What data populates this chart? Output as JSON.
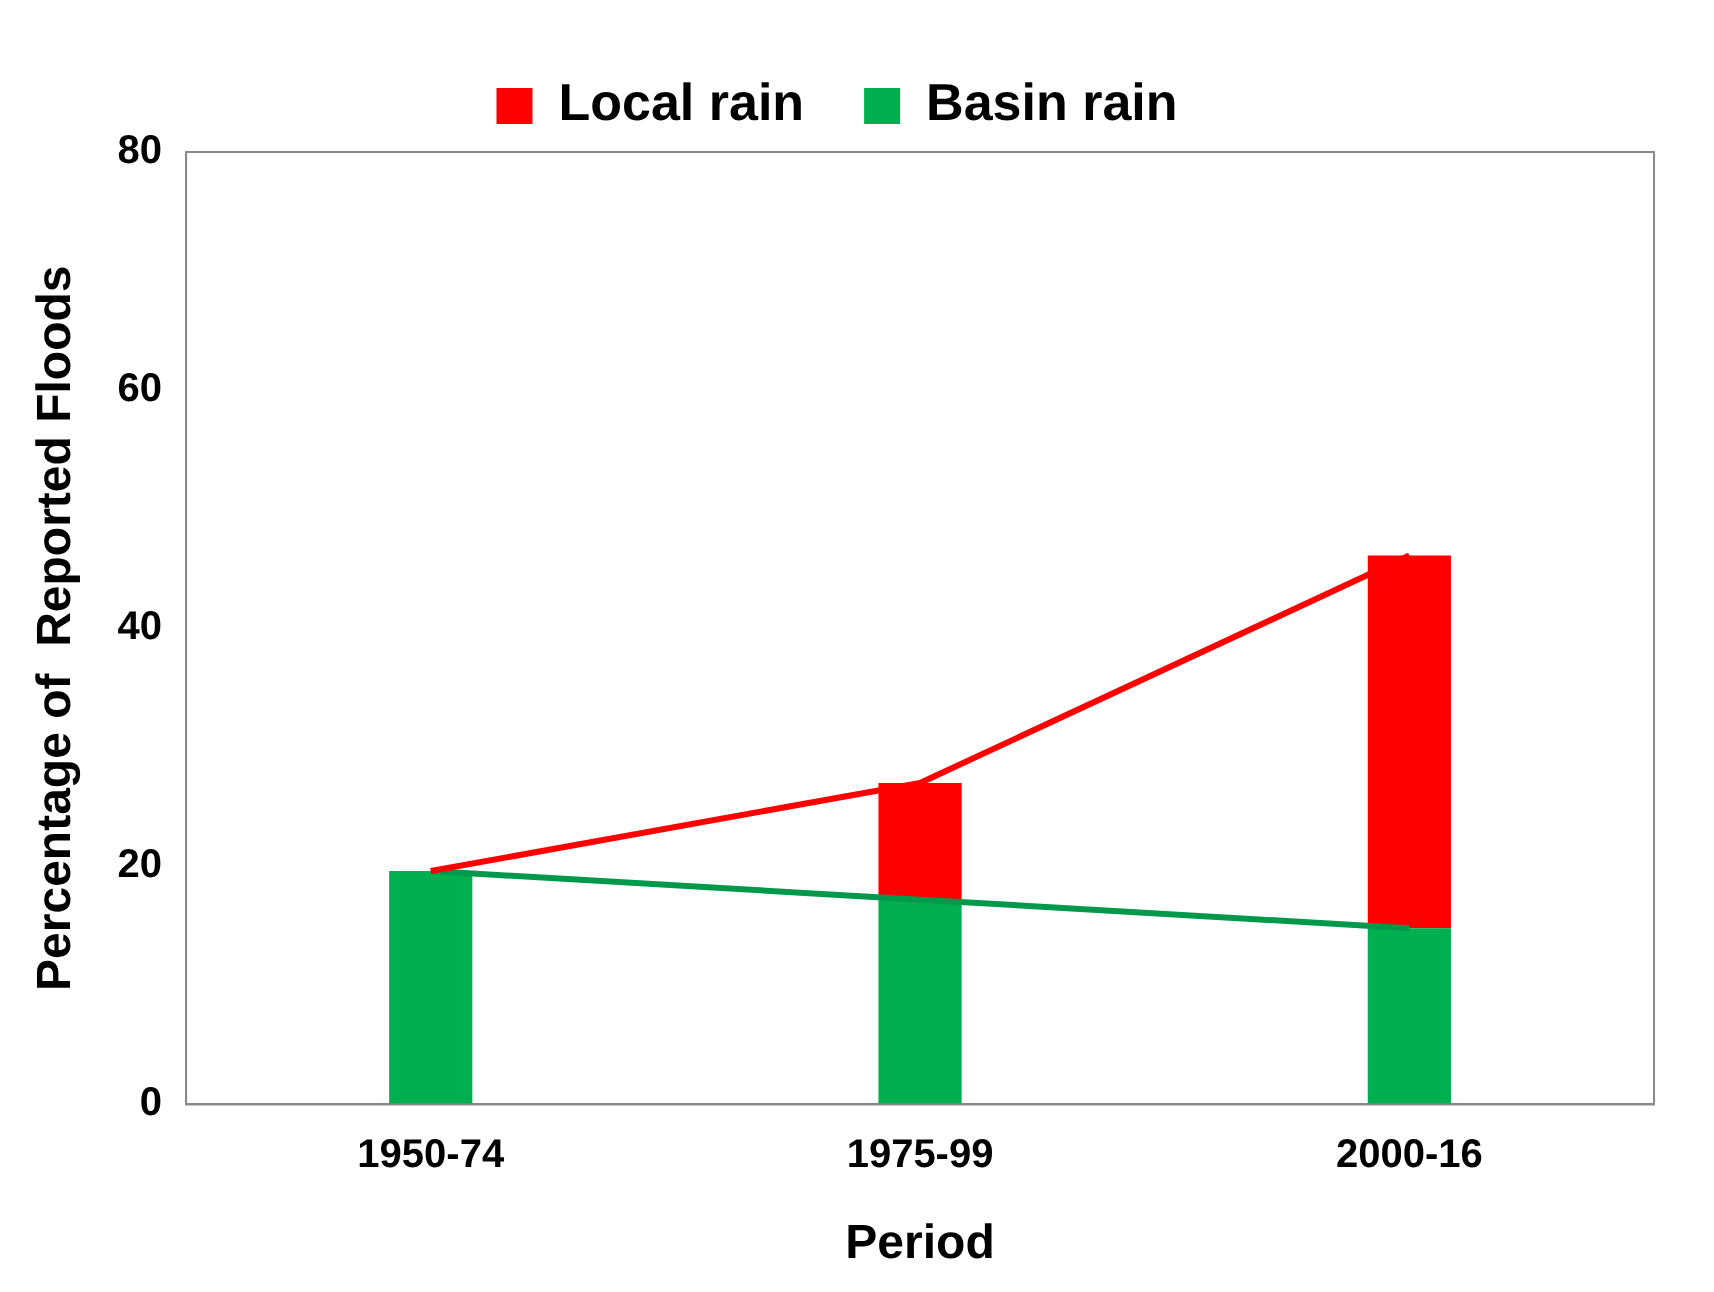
{
  "chart_data": {
    "type": "bar",
    "stacked": true,
    "xlabel": "Period",
    "ylabel": "Percentage of  Reported Floods",
    "categories": [
      "1950-74",
      "1975-99",
      "2000-16"
    ],
    "series": [
      {
        "name": "Basin rain",
        "color": "#00b050",
        "values": [
          19.6,
          17.2,
          14.8
        ]
      },
      {
        "name": "Local rain",
        "color": "#ff0000",
        "values": [
          0,
          9.8,
          31.3
        ]
      },
      {
        "type": "line",
        "color": "#ff0000",
        "values": [
          19.6,
          27.0,
          46.1
        ]
      },
      {
        "type": "line",
        "color": "#00984a",
        "values": [
          19.6,
          17.2,
          14.8
        ]
      }
    ],
    "ylim": [
      0,
      80
    ],
    "yticks": [
      0,
      20,
      40,
      60,
      80
    ],
    "grid": false,
    "legend": "top",
    "marker": "none"
  }
}
